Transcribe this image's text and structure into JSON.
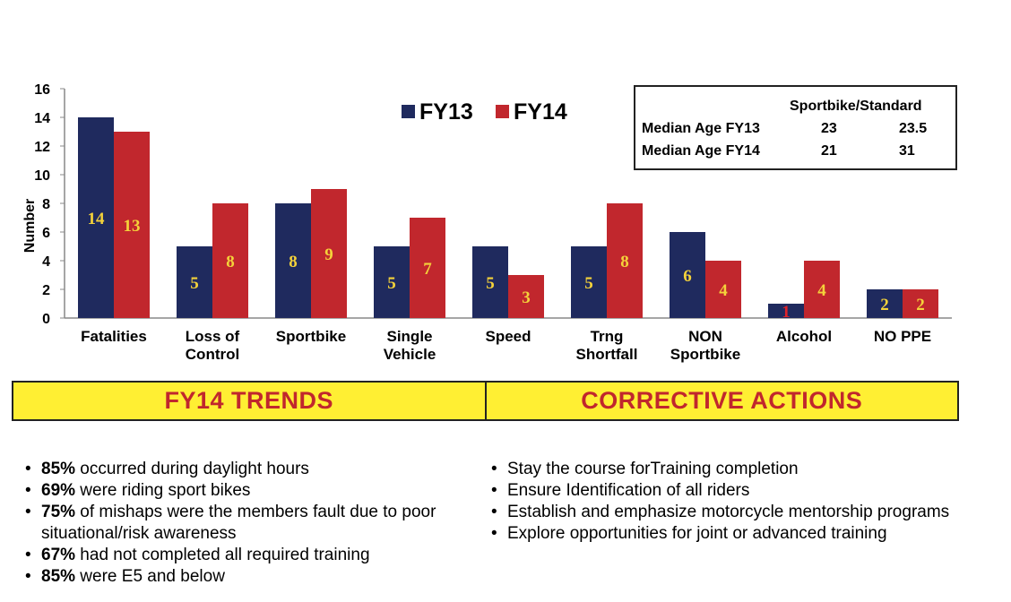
{
  "chart_data": {
    "type": "bar",
    "ylabel": "Number",
    "xlabel": "",
    "ylim": [
      0,
      16
    ],
    "yticks": [
      0,
      2,
      4,
      6,
      8,
      10,
      12,
      14,
      16
    ],
    "categories": [
      [
        "Fatalities"
      ],
      [
        "Loss of",
        "Control"
      ],
      [
        "Sportbike"
      ],
      [
        "Single",
        "Vehicle"
      ],
      [
        "Speed"
      ],
      [
        "Trng",
        "Shortfall"
      ],
      [
        "NON",
        "Sportbike"
      ],
      [
        "Alcohol"
      ],
      [
        "NO PPE"
      ]
    ],
    "series": [
      {
        "name": "FY13",
        "color": "#1f2a5e",
        "values": [
          14,
          5,
          8,
          5,
          5,
          5,
          6,
          1,
          2
        ]
      },
      {
        "name": "FY14",
        "color": "#c1272d",
        "values": [
          13,
          8,
          9,
          7,
          3,
          8,
          4,
          4,
          2
        ]
      }
    ],
    "data_label_color": "#f4d23a",
    "special_label_color": "#e0232a",
    "legend_position": "top-center",
    "grid": false
  },
  "age_table": {
    "header": "Sportbike/Standard",
    "rows": [
      {
        "label": "Median Age FY13",
        "sportbike": "23",
        "standard": "23.5"
      },
      {
        "label": "Median Age FY14",
        "sportbike": "21",
        "standard": "31"
      }
    ]
  },
  "banner": {
    "left": "FY14 TRENDS",
    "right": "CORRECTIVE ACTIONS",
    "background": "#ffef33",
    "text_color": "#c0272d"
  },
  "trends": [
    {
      "pct": "85%",
      "text": " occurred during daylight hours"
    },
    {
      "pct": "69%",
      "text": " were riding sport bikes"
    },
    {
      "pct": "75%",
      "text": " of mishaps were the members fault due to poor situational/risk awareness"
    },
    {
      "pct": "67%",
      "text": " had not completed all required training"
    },
    {
      "pct": "85%",
      "text": " were E5 and below"
    }
  ],
  "actions": [
    {
      "text": "Stay the course forTraining completion"
    },
    {
      "text": "Ensure Identification of all riders"
    },
    {
      "text": "Establish and emphasize motorcycle mentorship programs"
    },
    {
      "text": "Explore opportunities for joint or advanced training"
    }
  ]
}
